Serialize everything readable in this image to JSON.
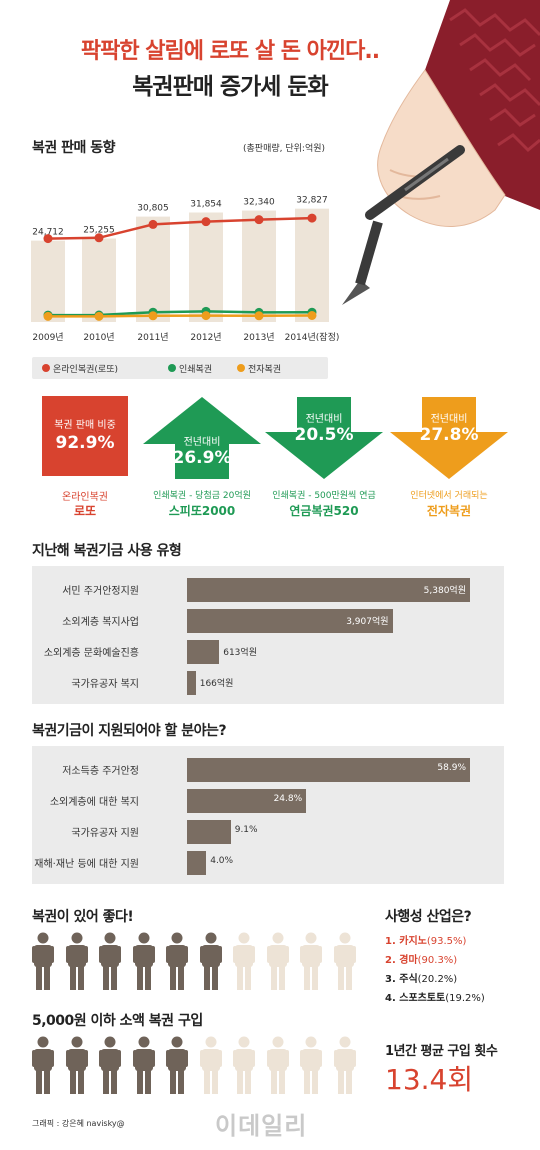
{
  "header": {
    "title_line1": "팍팍한 살림에 로또 살 돈 아낀다..",
    "title_line2": "복권판매 증가세 둔화"
  },
  "colors": {
    "red": "#d8432f",
    "green": "#1f9a55",
    "orange": "#ee9d1c",
    "bar_fill": "#7a6d62",
    "column": "#ede4d8",
    "person_dark": "#6f6359",
    "person_light": "#ede3d6"
  },
  "chart_data": [
    {
      "type": "line",
      "title": "복권 판매 동향",
      "subtitle": "(총판매량, 단위:억원)",
      "categories": [
        "2009년",
        "2010년",
        "2011년",
        "2012년",
        "2013년",
        "2014년(잠정)"
      ],
      "total_values": [
        24712,
        25255,
        30805,
        31854,
        32340,
        32827
      ],
      "total_labels": [
        "24,712",
        "25,255",
        "30,805",
        "31,854",
        "32,340",
        "32,827"
      ],
      "series": [
        {
          "name": "온라인복권(로또)",
          "color": "#d8432f",
          "values": [
            23200,
            23400,
            26800,
            27500,
            28000,
            28400
          ]
        },
        {
          "name": "인쇄복권",
          "color": "#1f9a55",
          "values": [
            1100,
            1150,
            2800,
            3300,
            2700,
            2800
          ]
        },
        {
          "name": "전자복권",
          "color": "#ee9d1c",
          "values": [
            400,
            400,
            700,
            800,
            700,
            900
          ]
        }
      ]
    },
    {
      "type": "bar",
      "title": "지난해 복권기금 사용 유형",
      "categories": [
        "서민 주거안정지원",
        "소외계층 복지사업",
        "소외계층 문화예술진흥",
        "국가유공자 복지"
      ],
      "values": [
        5380,
        3907,
        613,
        166
      ],
      "value_labels": [
        "5,380억원",
        "3,907억원",
        "613억원",
        "166억원"
      ],
      "xlim": [
        0,
        5380
      ]
    },
    {
      "type": "bar",
      "title": "복권기금이 지원되어야 할 분야는?",
      "categories": [
        "저소득층 주거안정",
        "소외계층에 대한 복지",
        "국가유공자 지원",
        "재해·재난 등에 대한 지원"
      ],
      "values": [
        58.9,
        24.8,
        9.1,
        4.0
      ],
      "value_labels": [
        "58.9%",
        "24.8%",
        "9.1%",
        "4.0%"
      ],
      "xlim": [
        0,
        58.9
      ]
    }
  ],
  "stats": {
    "share": {
      "label": "복권 판매 비중",
      "value": "92.9%",
      "caption": "온라인복권",
      "name": "로또"
    },
    "speeto": {
      "label": "전년대비",
      "value": "26.9%",
      "caption": "인쇄복권 - 당첨금 20억원",
      "name": "스피또2000"
    },
    "annuity": {
      "label": "전년대비",
      "value": "20.5%",
      "caption": "인쇄복권 - 500만원씩 연금",
      "name": "연금복권520"
    },
    "electronic": {
      "label": "전년대비",
      "value": "27.8%",
      "caption": "인터넷에서 거래되는",
      "name": "전자복권"
    }
  },
  "bottom": {
    "good_title": "복권이 있어 좋다!",
    "good_filled": 6,
    "good_total": 10,
    "small_title": "5,000원 이하 소액 복권 구입",
    "small_filled": 5,
    "small_total": 10,
    "gambling_title": "사행성 산업은?",
    "gambling": [
      {
        "rank": "1.",
        "name": "카지노",
        "pct": "(93.5%)",
        "highlight": true
      },
      {
        "rank": "2.",
        "name": "경마",
        "pct": "(90.3%)",
        "highlight": true
      },
      {
        "rank": "3.",
        "name": "주식",
        "pct": "(20.2%)",
        "highlight": false
      },
      {
        "rank": "4.",
        "name": "스포츠토토",
        "pct": "(19.2%)",
        "highlight": false
      }
    ],
    "avg_title": "1년간 평균 구입 횟수",
    "avg_value": "13.4회"
  },
  "footer": {
    "credit": "그래픽 : 강은혜 navisky@",
    "watermark": "이데일리"
  }
}
